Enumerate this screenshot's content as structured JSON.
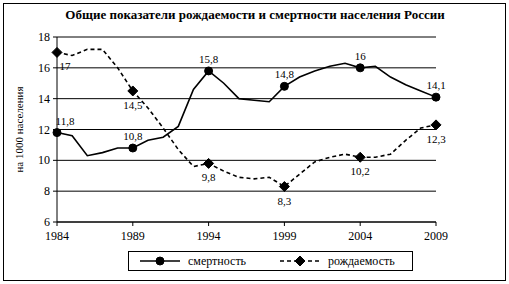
{
  "chart_data": {
    "type": "line",
    "title": "Общие показатели рождаемости и смертности населения России",
    "y_label": "на 1000 населения",
    "x": [
      1984,
      1985,
      1986,
      1987,
      1988,
      1989,
      1990,
      1991,
      1992,
      1993,
      1994,
      1995,
      1996,
      1997,
      1998,
      1999,
      2000,
      2001,
      2002,
      2003,
      2004,
      2005,
      2006,
      2007,
      2008,
      2009
    ],
    "xlim": [
      1984,
      2009
    ],
    "xticks": [
      1984,
      1989,
      1994,
      1999,
      2004,
      2009
    ],
    "ylim": [
      6,
      18
    ],
    "yticks": [
      6,
      8,
      10,
      12,
      14,
      16,
      18
    ],
    "grid": true,
    "legend": "bottom",
    "data_labels": true,
    "series": [
      {
        "name": "смертность",
        "color": "#000000",
        "marker": "circle",
        "line_style": "solid",
        "values": [
          11.8,
          11.6,
          10.3,
          10.5,
          10.8,
          10.8,
          11.3,
          11.5,
          12.2,
          14.6,
          15.8,
          15.0,
          14.0,
          13.9,
          13.8,
          14.8,
          15.4,
          15.8,
          16.1,
          16.3,
          16.0,
          16.1,
          15.4,
          14.9,
          14.5,
          14.1
        ],
        "value_labels": [
          "11,8",
          null,
          null,
          null,
          null,
          "10,8",
          null,
          null,
          null,
          null,
          "15,8",
          null,
          null,
          null,
          null,
          "14,8",
          null,
          null,
          null,
          null,
          "16",
          null,
          null,
          null,
          null,
          "14,1"
        ]
      },
      {
        "name": "рождаемость",
        "color": "#000000",
        "marker": "diamond",
        "line_style": "dashed",
        "values": [
          17.0,
          16.8,
          17.2,
          17.2,
          16.0,
          14.5,
          13.4,
          12.1,
          10.7,
          9.6,
          9.8,
          9.3,
          8.9,
          8.8,
          8.9,
          8.3,
          9.1,
          9.9,
          10.2,
          10.4,
          10.2,
          10.2,
          10.4,
          11.3,
          12.1,
          12.3
        ],
        "value_labels": [
          "17",
          null,
          null,
          null,
          null,
          "14,5",
          null,
          null,
          null,
          null,
          "9,8",
          null,
          null,
          null,
          null,
          "8,3",
          null,
          null,
          null,
          null,
          "10,2",
          null,
          null,
          null,
          null,
          "12,3"
        ]
      }
    ]
  }
}
